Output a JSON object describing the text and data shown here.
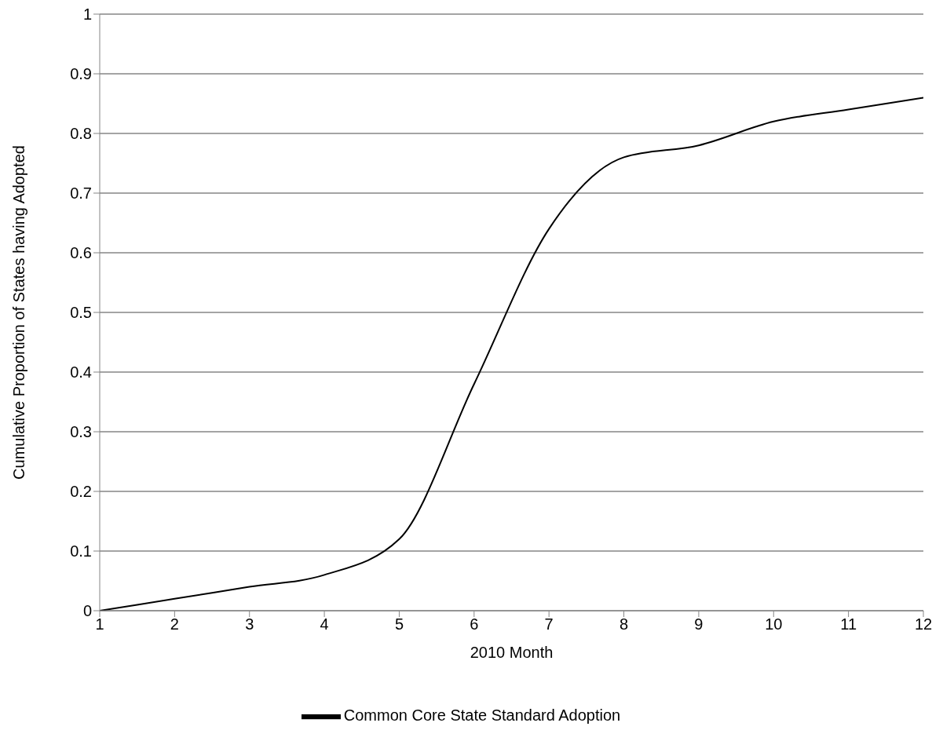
{
  "chart_data": {
    "type": "line",
    "xlabel": "2010 Month",
    "ylabel": "Cumulative Proportion of States having Adopted",
    "x": [
      1,
      2,
      3,
      4,
      5,
      6,
      7,
      8,
      9,
      10,
      11,
      12
    ],
    "series": [
      {
        "name": "Common Core State Standard Adoption",
        "color": "#000000",
        "values": [
          0,
          0.02,
          0.04,
          0.06,
          0.12,
          0.38,
          0.64,
          0.76,
          0.78,
          0.82,
          0.84,
          0.86
        ]
      }
    ],
    "xlim": [
      1,
      12
    ],
    "xticks": [
      1,
      2,
      3,
      4,
      5,
      6,
      7,
      8,
      9,
      10,
      11,
      12
    ],
    "ylim": [
      0,
      1
    ],
    "yticks": [
      0,
      0.1,
      0.2,
      0.3,
      0.4,
      0.5,
      0.6,
      0.7,
      0.8,
      0.9,
      1
    ],
    "grid": "y",
    "legend": "bottom",
    "marker": "none",
    "line_style": "solid"
  }
}
